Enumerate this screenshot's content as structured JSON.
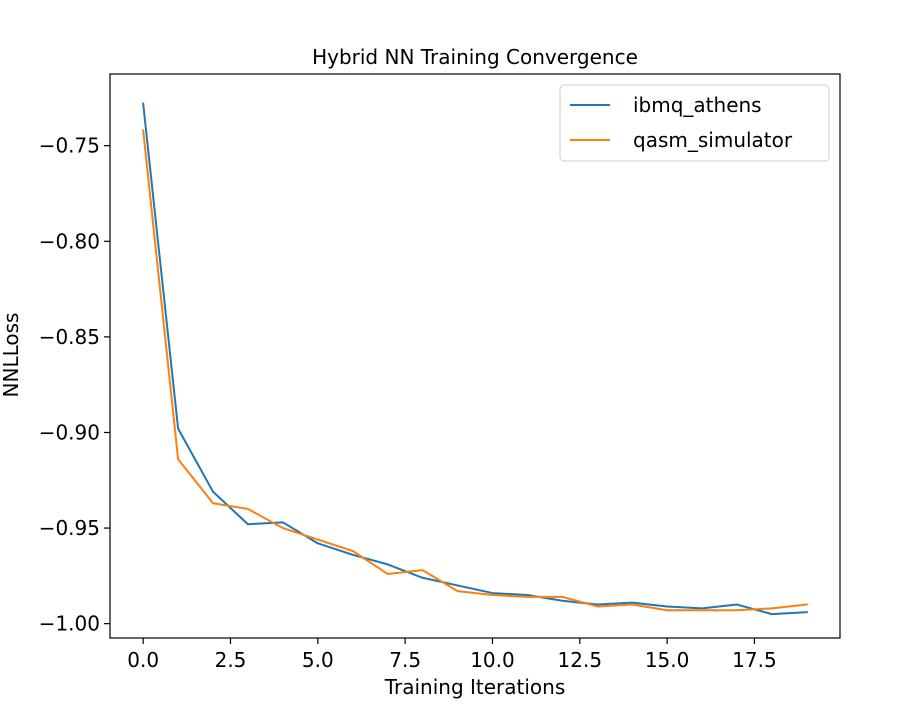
{
  "chart_data": {
    "type": "line",
    "title": "Hybrid NN Training Convergence",
    "xlabel": "Training Iterations",
    "ylabel": "NNLLoss",
    "xlim": [
      -0.95,
      19.95
    ],
    "ylim": [
      -1.0075,
      -0.7125
    ],
    "xticks": [
      0.0,
      2.5,
      5.0,
      7.5,
      10.0,
      12.5,
      15.0,
      17.5
    ],
    "xtick_labels": [
      "0.0",
      "2.5",
      "5.0",
      "7.5",
      "10.0",
      "12.5",
      "15.0",
      "17.5"
    ],
    "yticks": [
      -1.0,
      -0.95,
      -0.9,
      -0.85,
      -0.8,
      -0.75
    ],
    "ytick_labels": [
      "−1.00",
      "−0.95",
      "−0.90",
      "−0.85",
      "−0.80",
      "−0.75"
    ],
    "grid": false,
    "legend_position": "upper right",
    "x": [
      0,
      1,
      2,
      3,
      4,
      5,
      6,
      7,
      8,
      9,
      10,
      11,
      12,
      13,
      14,
      15,
      16,
      17,
      18,
      19
    ],
    "series": [
      {
        "name": "ibmq_athens",
        "color": "#1f77b4",
        "values": [
          -0.728,
          -0.898,
          -0.931,
          -0.948,
          -0.947,
          -0.958,
          -0.964,
          -0.969,
          -0.976,
          -0.98,
          -0.984,
          -0.985,
          -0.988,
          -0.99,
          -0.989,
          -0.991,
          -0.992,
          -0.99,
          -0.995,
          -0.994
        ]
      },
      {
        "name": "qasm_simulator",
        "color": "#ff7f0e",
        "values": [
          -0.742,
          -0.914,
          -0.937,
          -0.94,
          -0.95,
          -0.956,
          -0.962,
          -0.974,
          -0.972,
          -0.983,
          -0.985,
          -0.986,
          -0.986,
          -0.991,
          -0.99,
          -0.993,
          -0.993,
          -0.993,
          -0.992,
          -0.99
        ]
      }
    ]
  }
}
